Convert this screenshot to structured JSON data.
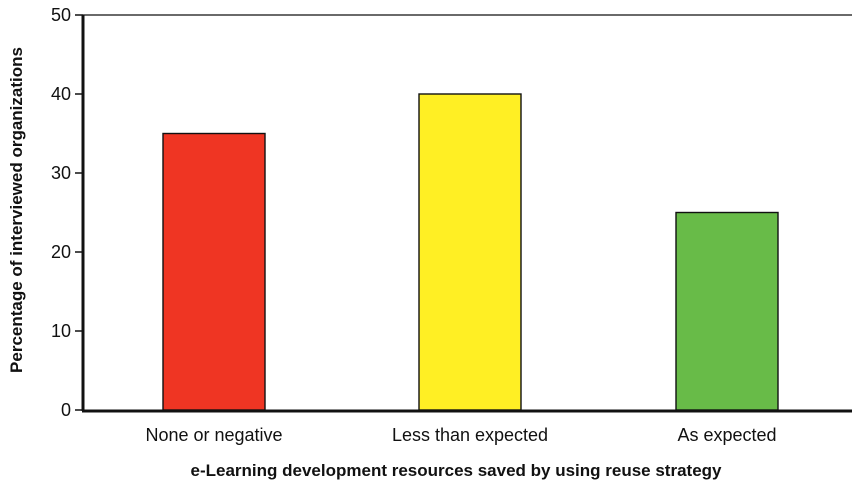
{
  "chart_data": {
    "type": "bar",
    "categories": [
      "None or negative",
      "Less than expected",
      "As expected"
    ],
    "values": [
      35,
      40,
      25
    ],
    "colors": [
      "#EF3523",
      "#FFEF24",
      "#68BB48"
    ],
    "xlabel": "e-Learning development resources saved by using reuse strategy",
    "ylabel": "Percentage of interviewed organizations",
    "ylim": [
      0,
      50
    ],
    "yticks": [
      0,
      10,
      20,
      30,
      40,
      50
    ],
    "grid": false,
    "legend": "none"
  }
}
